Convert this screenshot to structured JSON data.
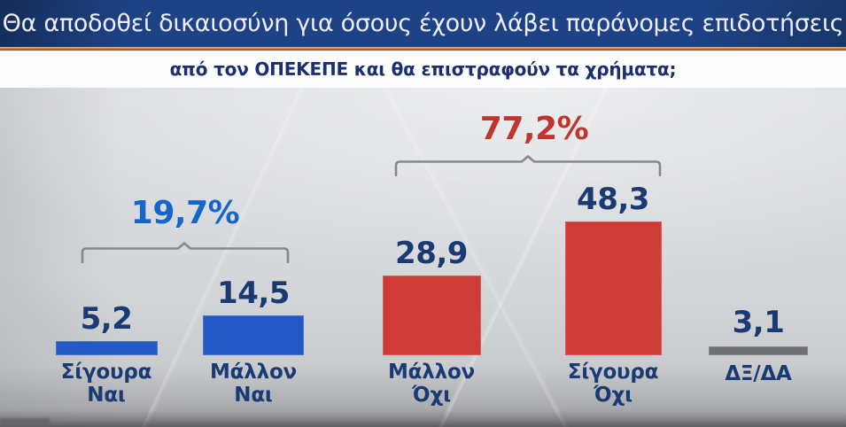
{
  "header": {
    "title": "Θα αποδοθεί δικαιοσύνη για όσους έχουν λάβει παράνομες επιδοτήσεις",
    "subtitle": "από τον ΟΠΕΚΕΠΕ και θα επιστραφούν τα χρήματα;"
  },
  "colors": {
    "header_bg": "#1e4286",
    "header_text": "#edeef8",
    "accent_orange": "#cf6f38",
    "subtitle_text": "#1b2f6e",
    "yes_bar_blue": "#2259c4",
    "no_bar_red": "#cf3b36",
    "dk_bar_gray": "#6f7072",
    "value_text_navy": "#1a3a74",
    "group_yes_blue": "#1566c9",
    "group_no_red": "#c2342e",
    "bracket_gray": "#85898f",
    "chart_bg": "#d6d8db"
  },
  "chart_data": {
    "type": "bar",
    "title": "Θα αποδοθεί δικαιοσύνη για όσους έχουν λάβει παράνομες επιδοτήσεις από τον ΟΠΕΚΕΠΕ και θα επιστραφούν τα χρήματα;",
    "categories": [
      "Σίγουρα Ναι",
      "Μάλλον Ναι",
      "Μάλλον Όχι",
      "Σίγουρα Όχι",
      "ΔΞ/ΔΑ"
    ],
    "values": [
      5.2,
      14.5,
      28.9,
      48.3,
      3.1
    ],
    "value_labels": [
      "5,2",
      "14,5",
      "28,9",
      "48,3",
      "3,1"
    ],
    "bar_colors": [
      "#2259c4",
      "#2259c4",
      "#cf3b36",
      "#cf3b36",
      "#6f7072"
    ],
    "groups": [
      {
        "label": "19,7%",
        "members": [
          "Σίγουρα Ναι",
          "Μάλλον Ναι"
        ],
        "color": "#1566c9"
      },
      {
        "label": "77,2%",
        "members": [
          "Μάλλον Όχι",
          "Σίγουρα Όχι"
        ],
        "color": "#c2342e"
      }
    ],
    "xlabel": "",
    "ylabel": "",
    "ylim": [
      0,
      50
    ],
    "grid": false,
    "legend": false
  },
  "bars": [
    {
      "value": "5,2",
      "label_lines": [
        "Σίγουρα",
        "Ναι"
      ]
    },
    {
      "value": "14,5",
      "label_lines": [
        "Μάλλον",
        "Ναι"
      ]
    },
    {
      "value": "28,9",
      "label_lines": [
        "Μάλλον",
        "Όχι"
      ]
    },
    {
      "value": "48,3",
      "label_lines": [
        "Σίγουρα",
        "Όχι"
      ]
    },
    {
      "value": "3,1",
      "label_lines": [
        "ΔΞ/ΔΑ"
      ]
    }
  ]
}
